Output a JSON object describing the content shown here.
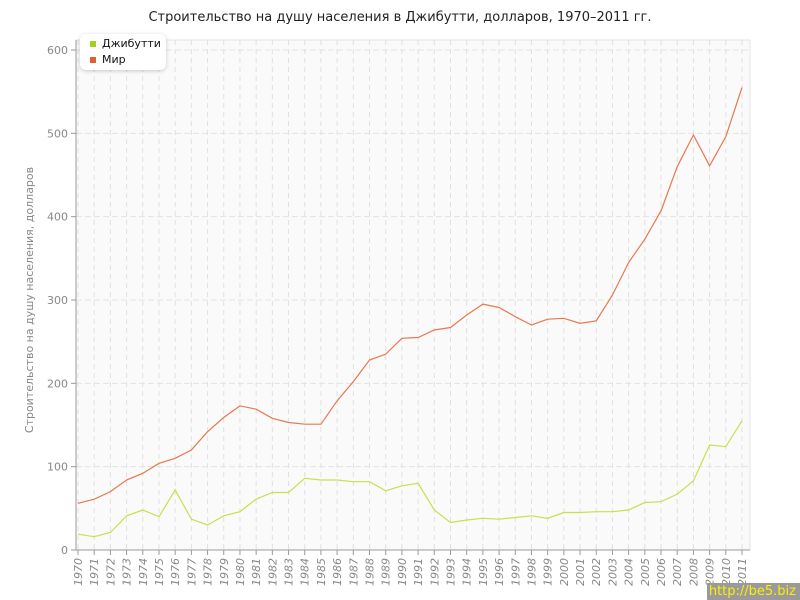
{
  "chart_data": {
    "type": "line",
    "title": "Строительство на душу населения в Джибутти, долларов, 1970–2011 гг.",
    "xlabel": "",
    "ylabel": "Строительство на душу населения, долларов",
    "ylim": [
      0,
      600
    ],
    "yticks": [
      0,
      100,
      200,
      300,
      400,
      500,
      600
    ],
    "grid": true,
    "legend_position": "top-left",
    "x": [
      1970,
      1971,
      1972,
      1973,
      1974,
      1975,
      1976,
      1977,
      1978,
      1979,
      1980,
      1981,
      1982,
      1983,
      1984,
      1985,
      1986,
      1987,
      1988,
      1989,
      1990,
      1991,
      1992,
      1993,
      1994,
      1995,
      1996,
      1997,
      1998,
      1999,
      2000,
      2001,
      2002,
      2003,
      2004,
      2005,
      2006,
      2007,
      2008,
      2009,
      2010,
      2011
    ],
    "series": [
      {
        "name": "Джибутти",
        "color": "#c8e04a",
        "legend_color": "#a8cc22",
        "values": [
          19,
          16,
          21,
          41,
          48,
          40,
          72,
          37,
          30,
          41,
          46,
          61,
          69,
          69,
          86,
          84,
          84,
          82,
          82,
          71,
          77,
          80,
          48,
          33,
          36,
          38,
          37,
          39,
          41,
          38,
          45,
          45,
          46,
          46,
          48,
          57,
          58,
          67,
          83,
          126,
          124,
          155
        ]
      },
      {
        "name": "Мир",
        "color": "#e8784e",
        "legend_color": "#e06030",
        "values": [
          56,
          61,
          70,
          84,
          92,
          104,
          110,
          120,
          142,
          159,
          173,
          169,
          158,
          153,
          151,
          151,
          179,
          202,
          228,
          235,
          254,
          255,
          264,
          267,
          282,
          295,
          291,
          280,
          270,
          277,
          278,
          272,
          275,
          306,
          345,
          373,
          407,
          460,
          498,
          461,
          496,
          555
        ]
      }
    ]
  },
  "watermark": "http://be5.biz"
}
